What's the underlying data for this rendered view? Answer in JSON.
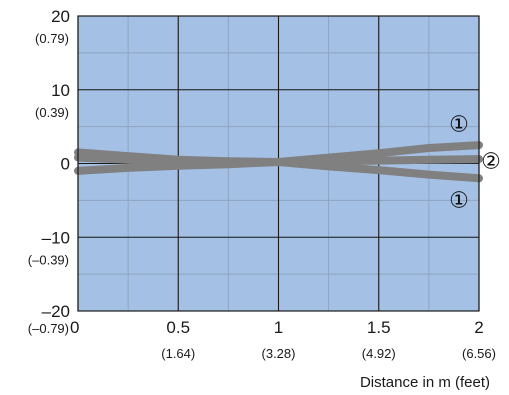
{
  "chart_data": {
    "type": "line",
    "xlabel": "Distance in m (feet)",
    "ylabel": "",
    "xlim": [
      0,
      2
    ],
    "ylim": [
      -20,
      20
    ],
    "grid": true,
    "x_ticks": [
      {
        "value": 0,
        "label": "0",
        "sub": ""
      },
      {
        "value": 0.5,
        "label": "0.5",
        "sub": "(1.64)"
      },
      {
        "value": 1,
        "label": "1",
        "sub": "(3.28)"
      },
      {
        "value": 1.5,
        "label": "1.5",
        "sub": "(4.92)"
      },
      {
        "value": 2,
        "label": "2",
        "sub": "(6.56)"
      }
    ],
    "x_sub_zero": "(–0.79)",
    "y_ticks": [
      {
        "value": 20,
        "label": "20",
        "sub": "(0.79)"
      },
      {
        "value": 10,
        "label": "10",
        "sub": "(0.39)"
      },
      {
        "value": 0,
        "label": "0",
        "sub": ""
      },
      {
        "value": -10,
        "label": "–10",
        "sub": "(–0.39)"
      },
      {
        "value": -20,
        "label": "–20",
        "sub": ""
      }
    ],
    "series": [
      {
        "x": [
          0,
          0.25,
          0.5,
          0.75,
          1,
          1.25,
          1.5,
          1.75,
          2
        ],
        "y": [
          1.5,
          1.0,
          0.5,
          0.3,
          0.2,
          0.8,
          1.4,
          2.1,
          2.5
        ]
      },
      {
        "x": [
          0,
          0.25,
          0.5,
          0.75,
          1,
          1.25,
          1.5,
          1.75,
          2
        ],
        "y": [
          0.8,
          0.5,
          0.3,
          0.2,
          0.2,
          0.3,
          0.4,
          0.5,
          0.6
        ]
      },
      {
        "x": [
          0,
          0.25,
          0.5,
          0.75,
          1,
          1.25,
          1.5,
          1.75,
          2
        ],
        "y": [
          -1.0,
          -0.6,
          -0.3,
          -0.1,
          0.2,
          -0.4,
          -0.9,
          -1.5,
          -2.0
        ]
      }
    ],
    "markers": [
      {
        "text": "①",
        "x": 1.9,
        "y": 5.4
      },
      {
        "text": "②",
        "x": 2.06,
        "y": 0.4
      },
      {
        "text": "①",
        "x": 1.9,
        "y": -4.9
      }
    ],
    "colors": {
      "plot_bg": "#a4c1e5",
      "minor_grid": "#8ea5c2",
      "major_grid": "#1a1a1a",
      "series": "#808080",
      "frame": "#1a1a1a"
    }
  }
}
